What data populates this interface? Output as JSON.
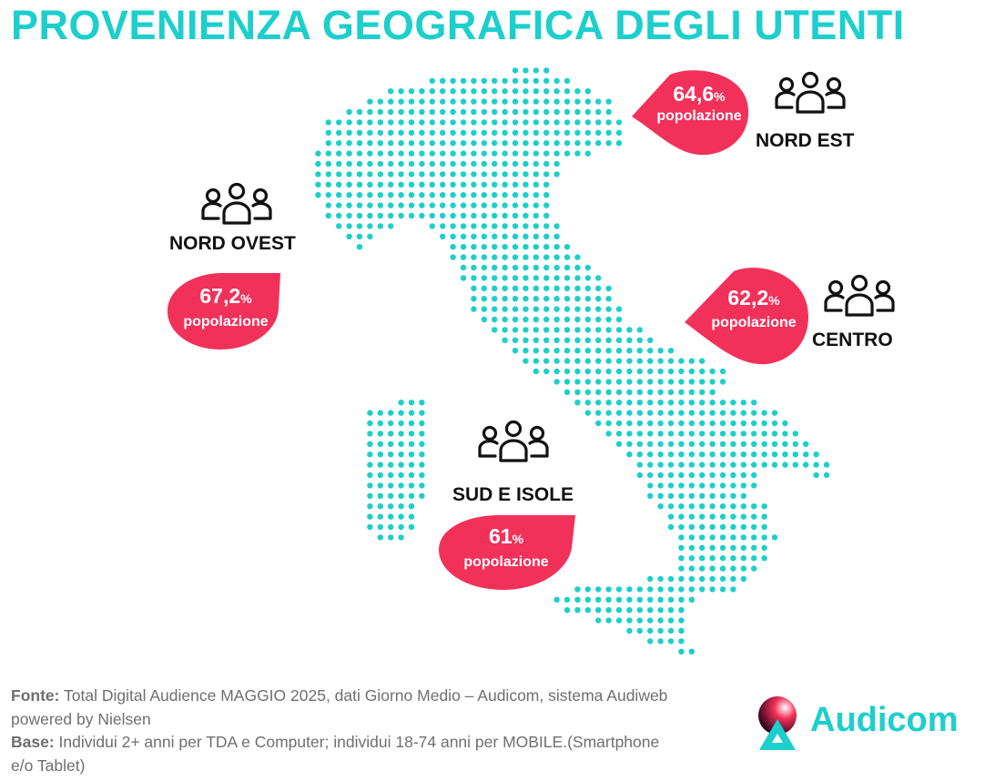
{
  "title": "PROVENIENZA GEOGRAFICA DEGLI UTENTI",
  "colors": {
    "accent": "#1ccfcc",
    "bubble": "#f2315a",
    "text": "#111111",
    "note": "#6f6f6f"
  },
  "chart_data": {
    "type": "table",
    "unit": "%",
    "regions": [
      {
        "name": "NORD OVEST",
        "value": "67,2",
        "pct": "%",
        "sublabel": "popolazione",
        "icon": "people-group-icon"
      },
      {
        "name": "NORD EST",
        "value": "64,6",
        "pct": "%",
        "sublabel": "popolazione",
        "icon": "people-group-icon"
      },
      {
        "name": "CENTRO",
        "value": "62,2",
        "pct": "%",
        "sublabel": "popolazione",
        "icon": "people-group-icon"
      },
      {
        "name": "SUD E ISOLE",
        "value": "61",
        "pct": "%",
        "sublabel": "popolazione",
        "icon": "people-group-icon"
      }
    ]
  },
  "footnote": {
    "source_label": "Fonte:",
    "source_text": " Total Digital Audience MAGGIO 2025, dati Giorno Medio – Audicom, sistema Audiweb powered by Nielsen",
    "base_label": "Base:",
    "base_text": "  Individui 2+ anni per TDA e Computer; individui 18-74 anni per MOBILE.(Smartphone e/o Tablet)"
  },
  "logo": {
    "text": "Audicom",
    "icon": "audicom-logo-icon"
  }
}
